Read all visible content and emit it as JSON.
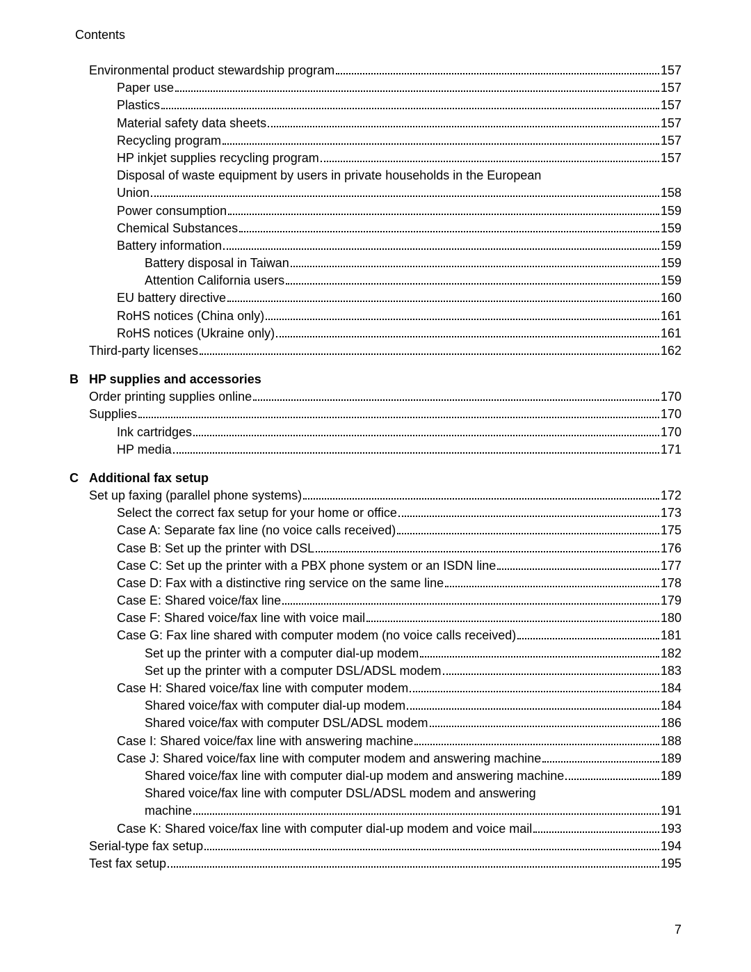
{
  "header": "Contents",
  "page_number": "7",
  "sections": [
    {
      "letter": "",
      "title": "",
      "entries": [
        {
          "indent": 0,
          "text": "Environmental product stewardship program",
          "page": "157"
        },
        {
          "indent": 1,
          "text": "Paper use",
          "page": "157"
        },
        {
          "indent": 1,
          "text": "Plastics",
          "page": "157"
        },
        {
          "indent": 1,
          "text": "Material safety data sheets",
          "page": "157"
        },
        {
          "indent": 1,
          "text": "Recycling program",
          "page": "157"
        },
        {
          "indent": 1,
          "text": "HP inkjet supplies recycling program",
          "page": "157"
        },
        {
          "indent": 1,
          "text": "Disposal of waste equipment by users in private households in the European Union",
          "page": "158",
          "wrap": true
        },
        {
          "indent": 1,
          "text": "Power consumption",
          "page": "159"
        },
        {
          "indent": 1,
          "text": "Chemical Substances",
          "page": "159"
        },
        {
          "indent": 1,
          "text": "Battery information",
          "page": "159"
        },
        {
          "indent": 2,
          "text": "Battery disposal in Taiwan",
          "page": "159"
        },
        {
          "indent": 2,
          "text": "Attention California users",
          "page": "159"
        },
        {
          "indent": 1,
          "text": "EU battery directive",
          "page": "160"
        },
        {
          "indent": 1,
          "text": "RoHS notices (China only)",
          "page": "161"
        },
        {
          "indent": 1,
          "text": "RoHS notices (Ukraine only)",
          "page": "161"
        },
        {
          "indent": 0,
          "text": "Third-party licenses",
          "page": "162"
        }
      ]
    },
    {
      "letter": "B",
      "title": "HP supplies and accessories",
      "entries": [
        {
          "indent": 0,
          "text": "Order printing supplies online",
          "page": "170"
        },
        {
          "indent": 0,
          "text": "Supplies",
          "page": "170"
        },
        {
          "indent": 1,
          "text": "Ink cartridges",
          "page": "170"
        },
        {
          "indent": 1,
          "text": "HP media",
          "page": "171"
        }
      ]
    },
    {
      "letter": "C",
      "title": "Additional fax setup",
      "entries": [
        {
          "indent": 0,
          "text": "Set up faxing (parallel phone systems)",
          "page": "172"
        },
        {
          "indent": 1,
          "text": "Select the correct fax setup for your home or office",
          "page": "173"
        },
        {
          "indent": 1,
          "text": "Case A: Separate fax line (no voice calls received)",
          "page": "175"
        },
        {
          "indent": 1,
          "text": "Case B: Set up the printer with DSL",
          "page": "176"
        },
        {
          "indent": 1,
          "text": "Case C: Set up the printer with a PBX phone system or an ISDN line",
          "page": "177"
        },
        {
          "indent": 1,
          "text": "Case D: Fax with a distinctive ring service on the same line",
          "page": "178"
        },
        {
          "indent": 1,
          "text": "Case E: Shared voice/fax line",
          "page": "179"
        },
        {
          "indent": 1,
          "text": "Case F: Shared voice/fax line with voice mail",
          "page": "180"
        },
        {
          "indent": 1,
          "text": "Case G: Fax line shared with computer modem (no voice calls received)",
          "page": "181"
        },
        {
          "indent": 2,
          "text": "Set up the printer with a computer dial-up modem",
          "page": "182"
        },
        {
          "indent": 2,
          "text": "Set up the printer with a computer DSL/ADSL modem",
          "page": "183"
        },
        {
          "indent": 1,
          "text": "Case H: Shared voice/fax line with computer modem",
          "page": "184"
        },
        {
          "indent": 2,
          "text": "Shared voice/fax with computer dial-up modem",
          "page": "184"
        },
        {
          "indent": 2,
          "text": "Shared voice/fax with computer DSL/ADSL modem",
          "page": "186"
        },
        {
          "indent": 1,
          "text": "Case I: Shared voice/fax line with answering machine",
          "page": "188"
        },
        {
          "indent": 1,
          "text": "Case J: Shared voice/fax line with computer modem and answering machine",
          "page": "189"
        },
        {
          "indent": 2,
          "text": "Shared voice/fax line with computer dial-up modem and answering machine",
          "page": "189"
        },
        {
          "indent": 2,
          "text": "Shared voice/fax line with computer DSL/ADSL modem and answering machine",
          "page": "191",
          "wrap": true
        },
        {
          "indent": 1,
          "text": "Case K: Shared voice/fax line with computer dial-up modem and voice mail",
          "page": "193"
        },
        {
          "indent": 0,
          "text": "Serial-type fax setup",
          "page": "194"
        },
        {
          "indent": 0,
          "text": "Test fax setup",
          "page": "195"
        }
      ]
    }
  ]
}
